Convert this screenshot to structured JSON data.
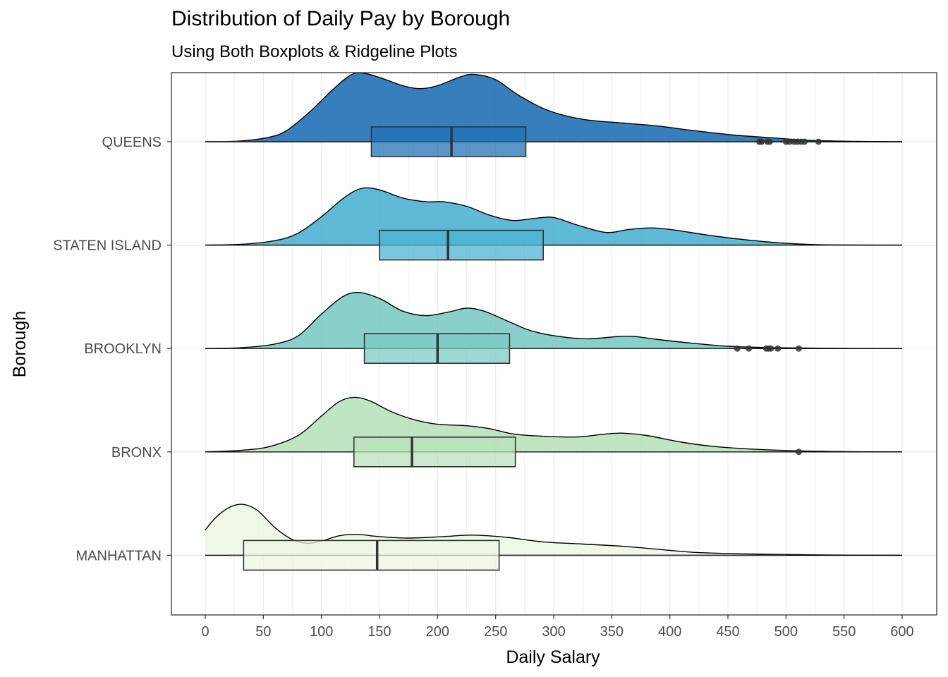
{
  "chart_data": {
    "type": "ridgeline",
    "title": "Distribution of Daily Pay by Borough",
    "subtitle": "Using Both Boxplots & Ridgeline Plots",
    "xlabel": "Daily Salary",
    "ylabel": "Borough",
    "xlim": [
      0,
      600
    ],
    "x_ticks": [
      0,
      50,
      100,
      150,
      200,
      250,
      300,
      350,
      400,
      450,
      500,
      550,
      600
    ],
    "categories": [
      "QUEENS",
      "STATEN ISLAND",
      "BROOKLYN",
      "BRONX",
      "MANHATTAN"
    ],
    "grid": true,
    "series": [
      {
        "name": "QUEENS",
        "color": "#2171b5",
        "box": {
          "whisker_low": 0,
          "q1": 143,
          "median": 212,
          "q3": 276,
          "whisker_high": 475
        },
        "outliers": [
          477,
          479,
          484,
          486,
          500,
          503,
          507,
          510,
          513,
          516,
          528
        ],
        "density": [
          [
            0,
            0
          ],
          [
            30,
            0.01
          ],
          [
            55,
            0.06
          ],
          [
            70,
            0.15
          ],
          [
            90,
            0.4
          ],
          [
            110,
            0.7
          ],
          [
            125,
            0.89
          ],
          [
            135,
            0.92
          ],
          [
            150,
            0.86
          ],
          [
            170,
            0.75
          ],
          [
            185,
            0.71
          ],
          [
            200,
            0.75
          ],
          [
            220,
            0.87
          ],
          [
            232,
            0.9
          ],
          [
            250,
            0.83
          ],
          [
            270,
            0.62
          ],
          [
            295,
            0.42
          ],
          [
            325,
            0.3
          ],
          [
            360,
            0.25
          ],
          [
            390,
            0.21
          ],
          [
            420,
            0.15
          ],
          [
            455,
            0.09
          ],
          [
            490,
            0.05
          ],
          [
            520,
            0.02
          ],
          [
            560,
            0.005
          ],
          [
            600,
            0
          ]
        ]
      },
      {
        "name": "STATEN ISLAND",
        "color": "#4eb3d3",
        "box": {
          "whisker_low": 88,
          "q1": 150,
          "median": 209,
          "q3": 291,
          "whisker_high": 463
        },
        "outliers": [],
        "density": [
          [
            0,
            0
          ],
          [
            30,
            0.01
          ],
          [
            60,
            0.06
          ],
          [
            80,
            0.16
          ],
          [
            100,
            0.38
          ],
          [
            120,
            0.64
          ],
          [
            135,
            0.76
          ],
          [
            150,
            0.74
          ],
          [
            170,
            0.63
          ],
          [
            190,
            0.58
          ],
          [
            205,
            0.58
          ],
          [
            225,
            0.52
          ],
          [
            245,
            0.4
          ],
          [
            265,
            0.33
          ],
          [
            285,
            0.36
          ],
          [
            300,
            0.37
          ],
          [
            320,
            0.27
          ],
          [
            345,
            0.17
          ],
          [
            365,
            0.21
          ],
          [
            385,
            0.23
          ],
          [
            405,
            0.2
          ],
          [
            430,
            0.14
          ],
          [
            460,
            0.08
          ],
          [
            495,
            0.03
          ],
          [
            530,
            0.005
          ],
          [
            600,
            0
          ]
        ]
      },
      {
        "name": "BROOKLYN",
        "color": "#7ccbc4",
        "box": {
          "whisker_low": 18,
          "q1": 137,
          "median": 200,
          "q3": 262,
          "whisker_high": 450
        },
        "outliers": [
          458,
          468,
          483,
          485,
          487,
          493,
          511
        ],
        "density": [
          [
            0,
            0
          ],
          [
            30,
            0.01
          ],
          [
            60,
            0.06
          ],
          [
            80,
            0.17
          ],
          [
            100,
            0.46
          ],
          [
            118,
            0.69
          ],
          [
            132,
            0.75
          ],
          [
            150,
            0.67
          ],
          [
            170,
            0.5
          ],
          [
            190,
            0.44
          ],
          [
            210,
            0.49
          ],
          [
            225,
            0.54
          ],
          [
            240,
            0.5
          ],
          [
            260,
            0.37
          ],
          [
            280,
            0.24
          ],
          [
            305,
            0.16
          ],
          [
            330,
            0.13
          ],
          [
            355,
            0.16
          ],
          [
            370,
            0.16
          ],
          [
            390,
            0.12
          ],
          [
            420,
            0.07
          ],
          [
            450,
            0.03
          ],
          [
            490,
            0.01
          ],
          [
            540,
            0.002
          ],
          [
            600,
            0
          ]
        ]
      },
      {
        "name": "BRONX",
        "color": "#b9e2bb",
        "box": {
          "whisker_low": 30,
          "q1": 128,
          "median": 178,
          "q3": 267,
          "whisker_high": 471
        },
        "outliers": [
          511
        ],
        "density": [
          [
            0,
            0
          ],
          [
            30,
            0.02
          ],
          [
            55,
            0.07
          ],
          [
            80,
            0.22
          ],
          [
            100,
            0.48
          ],
          [
            115,
            0.67
          ],
          [
            128,
            0.73
          ],
          [
            142,
            0.68
          ],
          [
            160,
            0.54
          ],
          [
            180,
            0.43
          ],
          [
            200,
            0.37
          ],
          [
            225,
            0.35
          ],
          [
            245,
            0.31
          ],
          [
            265,
            0.24
          ],
          [
            290,
            0.21
          ],
          [
            320,
            0.2
          ],
          [
            345,
            0.24
          ],
          [
            360,
            0.25
          ],
          [
            380,
            0.22
          ],
          [
            410,
            0.13
          ],
          [
            440,
            0.07
          ],
          [
            480,
            0.03
          ],
          [
            520,
            0.01
          ],
          [
            560,
            0.002
          ],
          [
            600,
            0
          ]
        ]
      },
      {
        "name": "MANHATTAN",
        "color": "#eef7e4",
        "box": {
          "whisker_low": 21,
          "q1": 33,
          "median": 148,
          "q3": 253,
          "whisker_high": 500
        },
        "outliers": [],
        "density": [
          [
            0,
            0.34
          ],
          [
            10,
            0.52
          ],
          [
            22,
            0.65
          ],
          [
            33,
            0.68
          ],
          [
            45,
            0.6
          ],
          [
            60,
            0.37
          ],
          [
            75,
            0.21
          ],
          [
            88,
            0.16
          ],
          [
            100,
            0.19
          ],
          [
            115,
            0.26
          ],
          [
            130,
            0.28
          ],
          [
            150,
            0.25
          ],
          [
            175,
            0.23
          ],
          [
            205,
            0.25
          ],
          [
            230,
            0.27
          ],
          [
            260,
            0.24
          ],
          [
            290,
            0.18
          ],
          [
            325,
            0.15
          ],
          [
            360,
            0.12
          ],
          [
            390,
            0.08
          ],
          [
            420,
            0.04
          ],
          [
            460,
            0.02
          ],
          [
            500,
            0.01
          ],
          [
            540,
            0.003
          ],
          [
            600,
            0
          ]
        ]
      }
    ]
  }
}
